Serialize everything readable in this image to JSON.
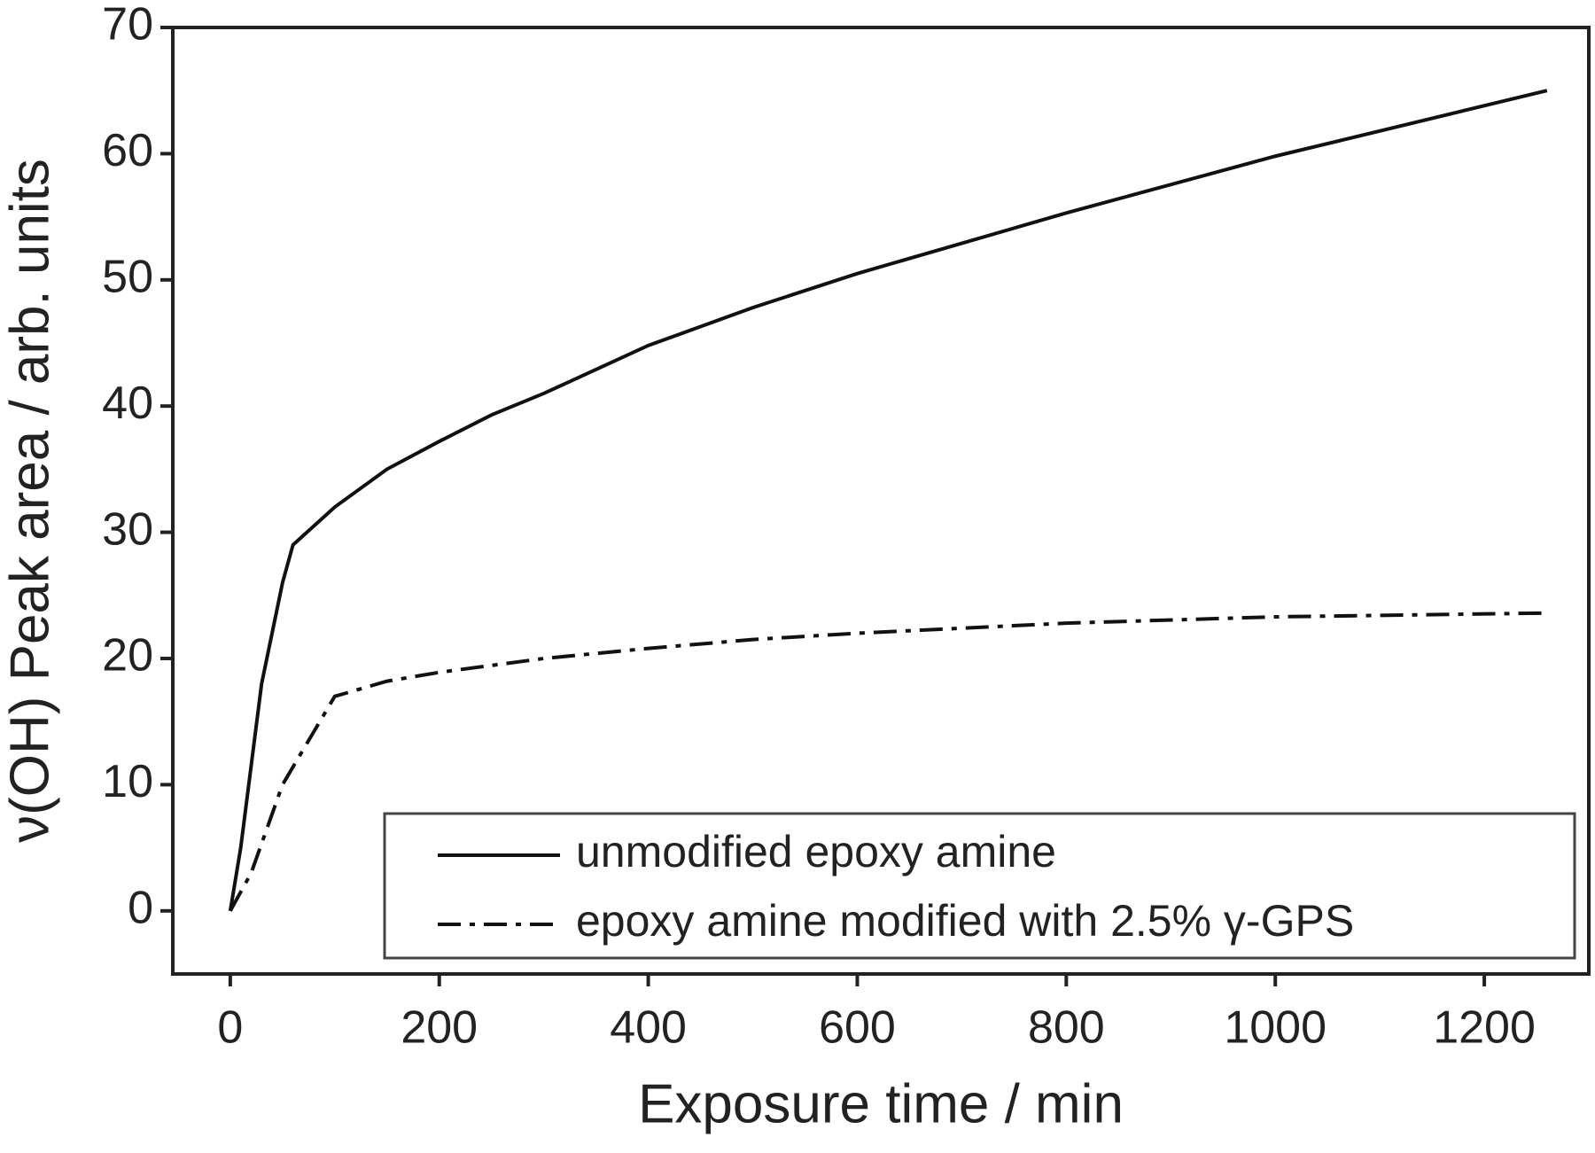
{
  "chart_data": {
    "type": "line",
    "xlabel": "Exposure time / min",
    "ylabel": "ν(OH) Peak area / arb. units",
    "xlim": [
      -55,
      1300
    ],
    "xticks": [
      0,
      200,
      400,
      600,
      800,
      1000,
      1200
    ],
    "ylim": [
      -5,
      70
    ],
    "yticks": [
      0,
      10,
      20,
      30,
      40,
      50,
      60,
      70
    ],
    "legend": "lower right",
    "series": [
      {
        "name": "unmodified epoxy amine",
        "color": "#111111",
        "dash": "solid",
        "x": [
          0,
          10,
          30,
          50,
          60,
          100,
          150,
          200,
          250,
          300,
          400,
          500,
          600,
          800,
          1000,
          1260
        ],
        "values": [
          0,
          5,
          18,
          26,
          29,
          32,
          35,
          37.2,
          39.3,
          41,
          44.8,
          47.8,
          50.5,
          55.3,
          59.8,
          65
        ]
      },
      {
        "name": "epoxy amine modified with 2.5% γ-GPS",
        "color": "#111111",
        "dash": "dashdot",
        "x": [
          0,
          20,
          50,
          100,
          150,
          200,
          300,
          400,
          500,
          600,
          800,
          1000,
          1260
        ],
        "values": [
          0,
          3,
          10,
          17,
          18.2,
          18.9,
          20,
          20.8,
          21.5,
          22,
          22.8,
          23.3,
          23.6
        ]
      }
    ]
  }
}
